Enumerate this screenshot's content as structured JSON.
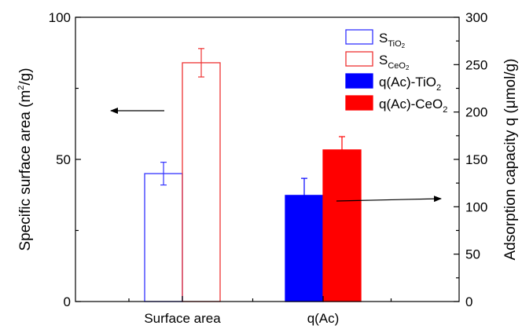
{
  "chart_data": {
    "type": "bar",
    "categories": [
      "Surface area",
      "q(Ac)"
    ],
    "y_left": {
      "label_pre": "Specific surface area (m",
      "label_sup": "2",
      "label_post": "/g)",
      "ylim": [
        0,
        100
      ],
      "ticks": [
        "0",
        "50",
        "100"
      ]
    },
    "y_right": {
      "label": "Adsorption capacity q (μmol/g)",
      "ylim": [
        0,
        300
      ],
      "ticks": [
        "0",
        "50",
        "100",
        "150",
        "200",
        "250",
        "300"
      ]
    },
    "series": [
      {
        "key": "s_tio2",
        "legend_main": "S",
        "legend_sub": "TiO",
        "legend_sub2": "2",
        "category": "Surface area",
        "axis": "left",
        "value": 45,
        "error": 4,
        "fill": "none",
        "stroke": "#3333ff"
      },
      {
        "key": "s_ceo2",
        "legend_main": "S",
        "legend_sub": "CeO",
        "legend_sub2": "2",
        "category": "Surface area",
        "axis": "left",
        "value": 84,
        "error": 5,
        "fill": "none",
        "stroke": "#ee3333"
      },
      {
        "key": "q_tio2",
        "legend_main": "q(Ac)-TiO",
        "legend_sub": "2",
        "category": "q(Ac)",
        "axis": "right",
        "value": 112,
        "error": 18,
        "fill": "#0000ff",
        "stroke": "#0000ff"
      },
      {
        "key": "q_ceo2",
        "legend_main": "q(Ac)-CeO",
        "legend_sub": "2",
        "category": "q(Ac)",
        "axis": "right",
        "value": 160,
        "error": 14,
        "fill": "#ff0000",
        "stroke": "#ff0000"
      }
    ],
    "annotations": [
      {
        "type": "arrow",
        "direction": "left",
        "points_to": "left-axis"
      },
      {
        "type": "arrow",
        "direction": "right",
        "points_to": "right-axis"
      }
    ],
    "grid": false,
    "legend_position": "top-right"
  }
}
